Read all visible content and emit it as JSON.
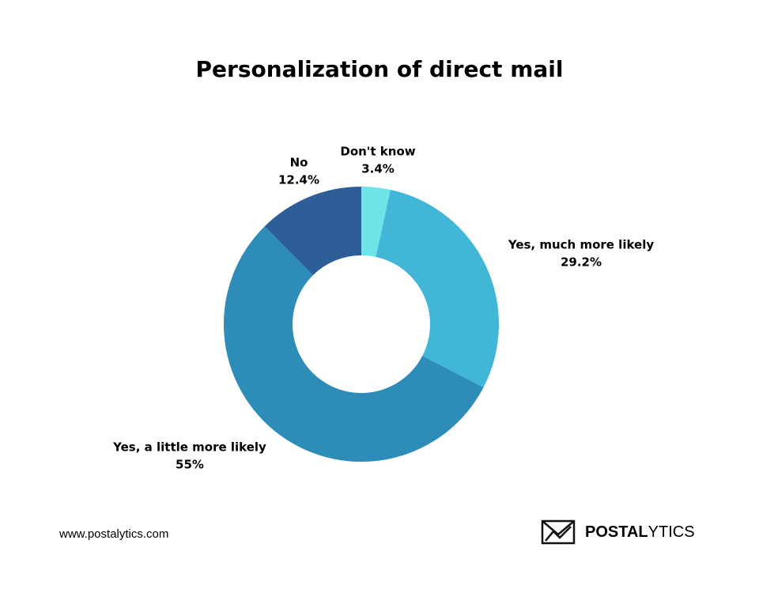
{
  "chart_data": {
    "type": "pie",
    "title": "Personalization of direct mail",
    "categories": [
      "Don't know",
      "Yes, much more likely",
      "Yes, a little more likely",
      "No"
    ],
    "values": [
      3.4,
      29.2,
      55,
      12.4
    ],
    "value_labels": [
      "3.4%",
      "29.2%",
      "55%",
      "12.4%"
    ],
    "colors": [
      "#6ee3e8",
      "#42b6d6",
      "#2e8cb9",
      "#2e5e98"
    ]
  },
  "footer": {
    "url": "www.postalytics.com",
    "logo": [
      "POSTAL",
      "YTICS"
    ]
  }
}
